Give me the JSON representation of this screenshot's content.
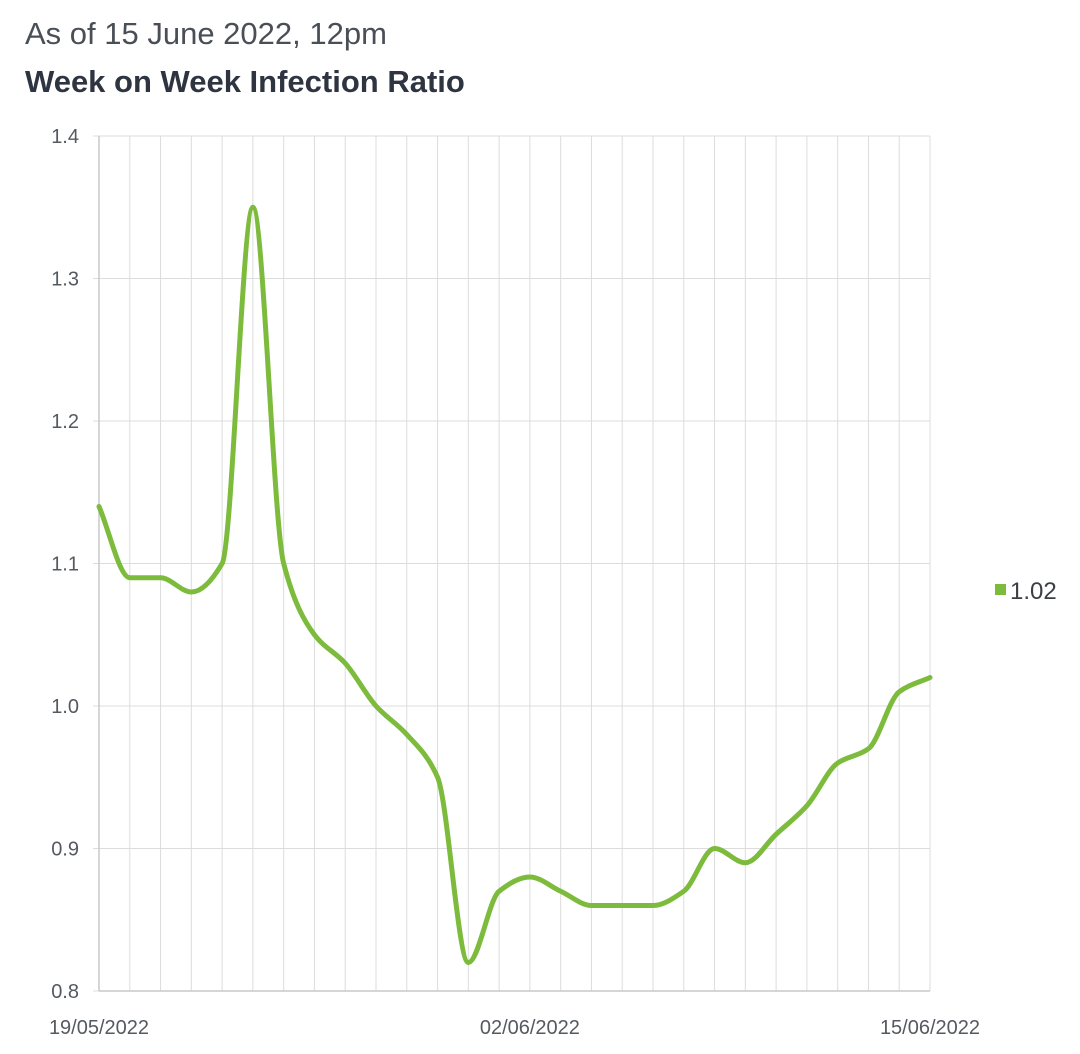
{
  "header": {
    "subtitle": "As of 15 June 2022, 12pm",
    "title": "Week on Week Infection Ratio"
  },
  "chart_data": {
    "type": "line",
    "title": "Week on Week Infection Ratio",
    "subtitle": "As of 15 June 2022, 12pm",
    "xlabel": "",
    "ylabel": "",
    "x": [
      "19/05/2022",
      "20/05/2022",
      "21/05/2022",
      "22/05/2022",
      "23/05/2022",
      "24/05/2022",
      "25/05/2022",
      "26/05/2022",
      "27/05/2022",
      "28/05/2022",
      "29/05/2022",
      "30/05/2022",
      "31/05/2022",
      "01/06/2022",
      "02/06/2022",
      "03/06/2022",
      "04/06/2022",
      "05/06/2022",
      "06/06/2022",
      "07/06/2022",
      "08/06/2022",
      "09/06/2022",
      "10/06/2022",
      "11/06/2022",
      "12/06/2022",
      "13/06/2022",
      "14/06/2022",
      "15/06/2022"
    ],
    "x_tick_labels": [
      "19/05/2022",
      "02/06/2022",
      "15/06/2022"
    ],
    "series": [
      {
        "name": "1.02",
        "color": "#7dbb3c",
        "values": [
          1.14,
          1.09,
          1.09,
          1.08,
          1.1,
          1.35,
          1.1,
          1.05,
          1.03,
          1.0,
          0.98,
          0.95,
          0.82,
          0.87,
          0.88,
          0.87,
          0.86,
          0.86,
          0.86,
          0.87,
          0.9,
          0.89,
          0.91,
          0.93,
          0.96,
          0.97,
          1.01,
          1.02
        ]
      }
    ],
    "y_ticks": [
      "0.8",
      "0.9",
      "1.0",
      "1.1",
      "1.2",
      "1.3",
      "1.4"
    ],
    "ylim": [
      0.8,
      1.4
    ],
    "grid": true,
    "legend_position": "right"
  }
}
